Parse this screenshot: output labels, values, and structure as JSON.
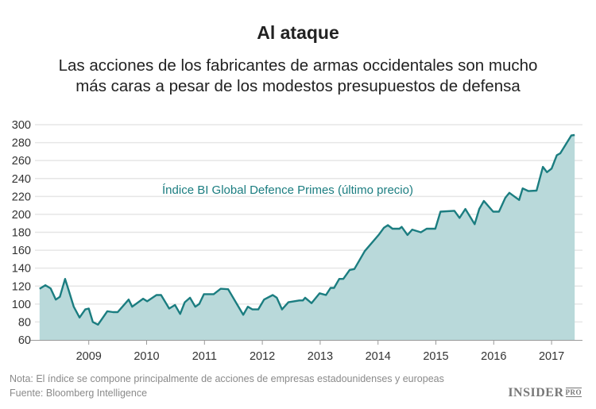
{
  "chart_data": {
    "type": "area",
    "title": "Al ataque",
    "subtitle_lines": [
      "Las acciones de los fabricantes de armas occidentales son mucho",
      "más caras a pesar de los modestos presupuestos de defensa"
    ],
    "xlabel": "",
    "ylabel": "",
    "ylim": [
      60,
      300
    ],
    "yticks": [
      60,
      80,
      100,
      120,
      140,
      160,
      180,
      200,
      220,
      240,
      260,
      280,
      300
    ],
    "xticks": [
      "2009",
      "2010",
      "2011",
      "2012",
      "2013",
      "2014",
      "2015",
      "2016",
      "2017"
    ],
    "grid": true,
    "series": [
      {
        "name": "Índice BI Global Defence Primes (último precio)",
        "color": "#1b7d80",
        "fill": "#b9d9da",
        "x": [
          2008.15,
          2008.25,
          2008.34,
          2008.43,
          2008.5,
          2008.59,
          2008.66,
          2008.74,
          2008.84,
          2008.94,
          2009.0,
          2009.07,
          2009.16,
          2009.32,
          2009.42,
          2009.5,
          2009.69,
          2009.75,
          2009.94,
          2010.01,
          2010.17,
          2010.25,
          2010.39,
          2010.49,
          2010.58,
          2010.66,
          2010.75,
          2010.84,
          2010.91,
          2010.99,
          2011.16,
          2011.28,
          2011.41,
          2011.67,
          2011.75,
          2011.83,
          2011.93,
          2012.03,
          2012.18,
          2012.25,
          2012.34,
          2012.45,
          2012.64,
          2012.7,
          2012.74,
          2012.85,
          2012.99,
          2013.1,
          2013.18,
          2013.24,
          2013.33,
          2013.4,
          2013.51,
          2013.59,
          2013.77,
          2014.01,
          2014.1,
          2014.17,
          2014.25,
          2014.37,
          2014.41,
          2014.51,
          2014.59,
          2014.74,
          2014.84,
          2014.99,
          2015.08,
          2015.32,
          2015.41,
          2015.51,
          2015.67,
          2015.75,
          2015.83,
          2015.99,
          2016.09,
          2016.2,
          2016.27,
          2016.44,
          2016.5,
          2016.6,
          2016.74,
          2016.85,
          2016.92,
          2017.0,
          2017.09,
          2017.15,
          2017.34,
          2017.4
        ],
        "y": [
          117,
          121,
          117.5,
          105,
          108,
          128,
          114,
          97,
          85,
          94,
          95,
          80,
          77,
          92,
          91,
          91,
          105,
          97,
          106,
          103,
          110,
          110,
          95,
          99,
          89,
          102,
          107,
          97,
          100,
          111,
          111,
          117,
          116.5,
          88,
          97,
          94,
          94,
          105,
          110,
          107,
          94,
          102,
          104,
          104,
          107,
          101,
          112,
          110,
          118,
          118,
          128,
          128,
          138,
          139,
          159,
          177,
          185,
          188,
          184,
          184,
          186,
          177,
          183,
          180,
          184,
          184,
          203,
          204,
          196,
          206,
          189,
          206,
          215,
          203,
          203,
          218.5,
          224,
          216,
          229,
          226,
          226.5,
          253,
          247,
          251,
          266,
          268,
          288,
          288.5
        ]
      }
    ]
  },
  "notes": {
    "nota": "Nota: El índice se compone principalmente de acciones de empresas estadounidenses y europeas",
    "fuente": "Fuente: Bloomberg Intelligence"
  },
  "logo": {
    "main": "INSIDER",
    "pro": "PRO"
  }
}
